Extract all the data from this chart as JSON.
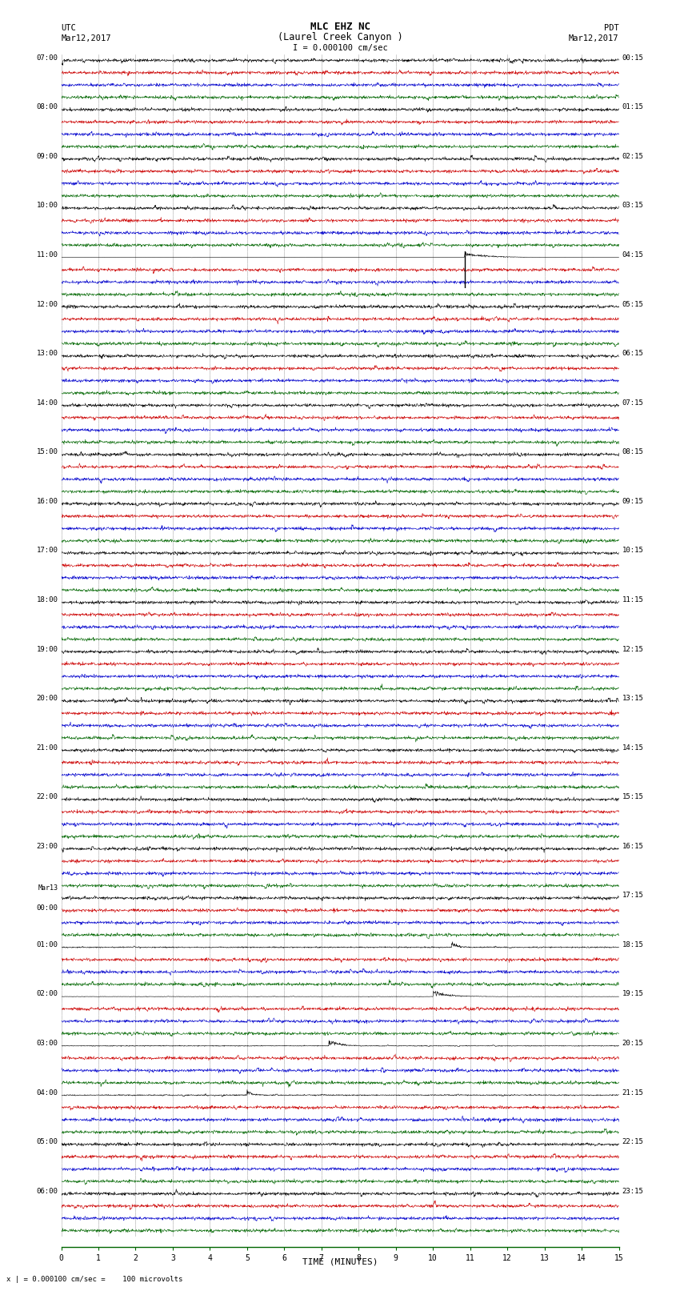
{
  "title_line1": "MLC EHZ NC",
  "title_line2": "(Laurel Creek Canyon )",
  "scale_label": "I = 0.000100 cm/sec",
  "bottom_label": "x | = 0.000100 cm/sec =    100 microvolts",
  "left_header_line1": "UTC",
  "left_header_line2": "Mar12,2017",
  "right_header_line1": "PDT",
  "right_header_line2": "Mar12,2017",
  "xlabel": "TIME (MINUTES)",
  "left_times": [
    "07:00",
    "",
    "",
    "",
    "08:00",
    "",
    "",
    "",
    "09:00",
    "",
    "",
    "",
    "10:00",
    "",
    "",
    "",
    "11:00",
    "",
    "",
    "",
    "12:00",
    "",
    "",
    "",
    "13:00",
    "",
    "",
    "",
    "14:00",
    "",
    "",
    "",
    "15:00",
    "",
    "",
    "",
    "16:00",
    "",
    "",
    "",
    "17:00",
    "",
    "",
    "",
    "18:00",
    "",
    "",
    "",
    "19:00",
    "",
    "",
    "",
    "20:00",
    "",
    "",
    "",
    "21:00",
    "",
    "",
    "",
    "22:00",
    "",
    "",
    "",
    "23:00",
    "",
    "",
    "",
    "Mar13",
    "00:00",
    "",
    "",
    "01:00",
    "",
    "",
    "",
    "02:00",
    "",
    "",
    "",
    "03:00",
    "",
    "",
    "",
    "04:00",
    "",
    "",
    "",
    "05:00",
    "",
    "",
    "",
    "06:00",
    "",
    "",
    ""
  ],
  "right_times": [
    "00:15",
    "",
    "",
    "",
    "01:15",
    "",
    "",
    "",
    "02:15",
    "",
    "",
    "",
    "03:15",
    "",
    "",
    "",
    "04:15",
    "",
    "",
    "",
    "05:15",
    "",
    "",
    "",
    "06:15",
    "",
    "",
    "",
    "07:15",
    "",
    "",
    "",
    "08:15",
    "",
    "",
    "",
    "09:15",
    "",
    "",
    "",
    "10:15",
    "",
    "",
    "",
    "11:15",
    "",
    "",
    "",
    "12:15",
    "",
    "",
    "",
    "13:15",
    "",
    "",
    "",
    "14:15",
    "",
    "",
    "",
    "15:15",
    "",
    "",
    "",
    "16:15",
    "",
    "",
    "",
    "17:15",
    "",
    "",
    "",
    "18:15",
    "",
    "",
    "",
    "19:15",
    "",
    "",
    "",
    "20:15",
    "",
    "",
    "",
    "21:15",
    "",
    "",
    "",
    "22:15",
    "",
    "",
    "",
    "23:15",
    "",
    "",
    ""
  ],
  "num_rows": 96,
  "num_cols": 4,
  "minutes": 15,
  "bg_color": "#ffffff",
  "trace_colors": [
    "#000000",
    "#cc0000",
    "#0000cc",
    "#006600"
  ],
  "grid_color": "#888888",
  "bold_grid_color": "#000000",
  "fig_width": 8.5,
  "fig_height": 16.13,
  "dpi": 100,
  "large_earthquake_row": 16,
  "large_earthquake_minute": 10.85,
  "large_earthquake_col": 0,
  "mar13_row": 68
}
